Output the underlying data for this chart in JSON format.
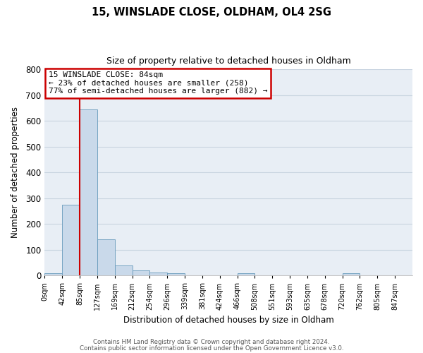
{
  "title_line1": "15, WINSLADE CLOSE, OLDHAM, OL4 2SG",
  "title_line2": "Size of property relative to detached houses in Oldham",
  "xlabel": "Distribution of detached houses by size in Oldham",
  "ylabel": "Number of detached properties",
  "bin_labels": [
    "0sqm",
    "42sqm",
    "85sqm",
    "127sqm",
    "169sqm",
    "212sqm",
    "254sqm",
    "296sqm",
    "339sqm",
    "381sqm",
    "424sqm",
    "466sqm",
    "508sqm",
    "551sqm",
    "593sqm",
    "635sqm",
    "678sqm",
    "720sqm",
    "762sqm",
    "805sqm",
    "847sqm"
  ],
  "bar_values": [
    8,
    275,
    645,
    140,
    38,
    20,
    13,
    10,
    0,
    0,
    0,
    10,
    0,
    0,
    0,
    0,
    0,
    8,
    0,
    0,
    0
  ],
  "bar_color": "#c9d9ea",
  "bar_edge_color": "#6699bb",
  "vline_x": 2,
  "vline_color": "#cc0000",
  "ylim": [
    0,
    800
  ],
  "yticks": [
    0,
    100,
    200,
    300,
    400,
    500,
    600,
    700,
    800
  ],
  "annotation_title": "15 WINSLADE CLOSE: 84sqm",
  "annotation_line2": "← 23% of detached houses are smaller (258)",
  "annotation_line3": "77% of semi-detached houses are larger (882) →",
  "annotation_box_color": "#ffffff",
  "annotation_border_color": "#cc0000",
  "footer_line1": "Contains HM Land Registry data © Crown copyright and database right 2024.",
  "footer_line2": "Contains public sector information licensed under the Open Government Licence v3.0.",
  "background_color": "#ffffff",
  "plot_bg_color": "#e8eef5",
  "grid_color": "#c8d4e0"
}
